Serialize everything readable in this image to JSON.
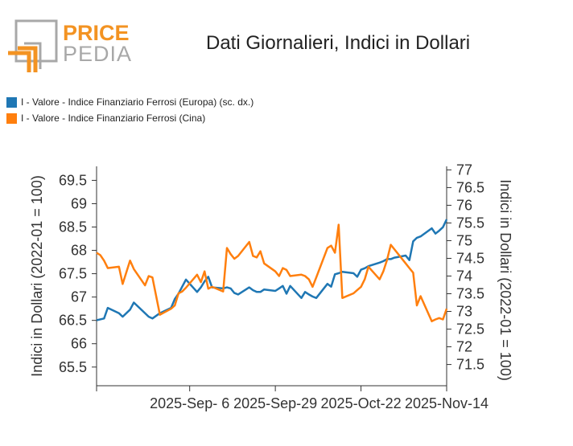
{
  "logo": {
    "word1": "PRICE",
    "word2": "PEDIA"
  },
  "colors": {
    "europa": "#1f77b4",
    "cina": "#ff7f0e",
    "logo_orange": "#f39322",
    "logo_grey": "#a8a8a8"
  },
  "chart_data": {
    "type": "line",
    "title": "Dati Giornalieri, Indici in Dollari",
    "ylabel_left": "Indici in Dollari (2022-01 = 100)",
    "ylabel_right": "Indici in Dollari (2022-01 = 100)",
    "ylim_left": [
      65.1,
      69.8
    ],
    "ylim_right": [
      70.9,
      77.1
    ],
    "yticks_left": [
      "65.5",
      "66",
      "66.5",
      "67",
      "67.5",
      "68",
      "68.5",
      "69",
      "69.5"
    ],
    "yticks_right": [
      "71.5",
      "72",
      "72.5",
      "73",
      "73.5",
      "74",
      "74.5",
      "75",
      "75.5",
      "76",
      "76.5",
      "77"
    ],
    "xlim": [
      "2025-08-12",
      "2025-11-14"
    ],
    "xticks": [
      {
        "date": "2025-09-06",
        "label": "2025-Sep- 6"
      },
      {
        "date": "2025-09-29",
        "label": "2025-Sep-29"
      },
      {
        "date": "2025-10-22",
        "label": "2025-Oct-22"
      },
      {
        "date": "2025-11-14",
        "label": "2025-Nov-14"
      }
    ],
    "series": [
      {
        "name": "I - Valore - Indice Finanziario Ferrosi (Europa) (sc. dx.)",
        "axis": "right",
        "color": "#1f77b4",
        "x": [
          "2025-08-12",
          "2025-08-14",
          "2025-08-15",
          "2025-08-18",
          "2025-08-19",
          "2025-08-21",
          "2025-08-22",
          "2025-08-26",
          "2025-08-27",
          "2025-08-29",
          "2025-09-01",
          "2025-09-02",
          "2025-09-03",
          "2025-09-04",
          "2025-09-05",
          "2025-09-08",
          "2025-09-09",
          "2025-09-10",
          "2025-09-11",
          "2025-09-12",
          "2025-09-15",
          "2025-09-16",
          "2025-09-17",
          "2025-09-18",
          "2025-09-19",
          "2025-09-22",
          "2025-09-23",
          "2025-09-24",
          "2025-09-25",
          "2025-09-26",
          "2025-09-29",
          "2025-09-30",
          "2025-10-01",
          "2025-10-02",
          "2025-10-03",
          "2025-10-06",
          "2025-10-07",
          "2025-10-08",
          "2025-10-09",
          "2025-10-10",
          "2025-10-13",
          "2025-10-14",
          "2025-10-15",
          "2025-10-16",
          "2025-10-17",
          "2025-10-20",
          "2025-10-21",
          "2025-10-22",
          "2025-10-23",
          "2025-10-24",
          "2025-10-27",
          "2025-10-28",
          "2025-10-29",
          "2025-10-30",
          "2025-10-31",
          "2025-11-03",
          "2025-11-04",
          "2025-11-05",
          "2025-11-06",
          "2025-11-07",
          "2025-11-10",
          "2025-11-11",
          "2025-11-12",
          "2025-11-13",
          "2025-11-14"
        ],
        "values": [
          72.75,
          72.8,
          73.1,
          72.95,
          72.85,
          73.05,
          73.25,
          72.85,
          72.8,
          72.95,
          73.1,
          73.35,
          73.5,
          73.7,
          73.9,
          73.55,
          73.68,
          73.85,
          73.98,
          73.68,
          73.65,
          73.68,
          73.65,
          73.52,
          73.48,
          73.68,
          73.6,
          73.55,
          73.55,
          73.62,
          73.58,
          73.65,
          73.72,
          73.5,
          73.72,
          73.38,
          73.55,
          73.48,
          73.42,
          73.38,
          73.78,
          73.7,
          74.05,
          74.08,
          74.12,
          74.08,
          73.98,
          74.18,
          74.22,
          74.28,
          74.38,
          74.42,
          74.48,
          74.48,
          74.52,
          74.58,
          74.45,
          74.98,
          75.08,
          75.12,
          75.35,
          75.2,
          75.28,
          75.38,
          75.6
        ]
      },
      {
        "name": "I - Valore - Indice Finanziario Ferrosi (Cina)",
        "axis": "left",
        "color": "#ff7f0e",
        "x": [
          "2025-08-12",
          "2025-08-13",
          "2025-08-14",
          "2025-08-15",
          "2025-08-18",
          "2025-08-19",
          "2025-08-21",
          "2025-08-22",
          "2025-08-25",
          "2025-08-26",
          "2025-08-27",
          "2025-08-29",
          "2025-09-01",
          "2025-09-02",
          "2025-09-03",
          "2025-09-04",
          "2025-09-05",
          "2025-09-08",
          "2025-09-09",
          "2025-09-10",
          "2025-09-11",
          "2025-09-12",
          "2025-09-15",
          "2025-09-16",
          "2025-09-17",
          "2025-09-18",
          "2025-09-19",
          "2025-09-22",
          "2025-09-23",
          "2025-09-24",
          "2025-09-25",
          "2025-09-26",
          "2025-09-29",
          "2025-09-30",
          "2025-10-01",
          "2025-10-02",
          "2025-10-03",
          "2025-10-06",
          "2025-10-07",
          "2025-10-08",
          "2025-10-09",
          "2025-10-10",
          "2025-10-13",
          "2025-10-14",
          "2025-10-15",
          "2025-10-16",
          "2025-10-17",
          "2025-10-20",
          "2025-10-21",
          "2025-10-22",
          "2025-10-23",
          "2025-10-24",
          "2025-10-27",
          "2025-10-28",
          "2025-10-29",
          "2025-10-30",
          "2025-10-31",
          "2025-11-03",
          "2025-11-04",
          "2025-11-05",
          "2025-11-06",
          "2025-11-07",
          "2025-11-10",
          "2025-11-11",
          "2025-11-12",
          "2025-11-13",
          "2025-11-14"
        ],
        "values": [
          67.95,
          67.9,
          67.78,
          67.62,
          67.65,
          67.28,
          67.78,
          67.6,
          67.25,
          67.45,
          67.42,
          66.62,
          66.75,
          66.82,
          67.08,
          67.12,
          67.2,
          67.48,
          67.32,
          67.55,
          67.18,
          67.22,
          67.12,
          68.05,
          67.92,
          67.82,
          67.88,
          68.18,
          67.88,
          67.85,
          67.98,
          67.72,
          67.55,
          67.45,
          67.62,
          67.58,
          67.45,
          67.48,
          67.45,
          67.38,
          67.22,
          67.42,
          68.05,
          68.1,
          67.95,
          68.55,
          66.98,
          67.08,
          67.15,
          67.22,
          67.38,
          67.65,
          67.38,
          67.55,
          67.8,
          68.12,
          68.02,
          67.72,
          67.62,
          67.52,
          66.82,
          67.02,
          66.48,
          66.52,
          66.55,
          66.52,
          66.75
        ]
      }
    ]
  }
}
